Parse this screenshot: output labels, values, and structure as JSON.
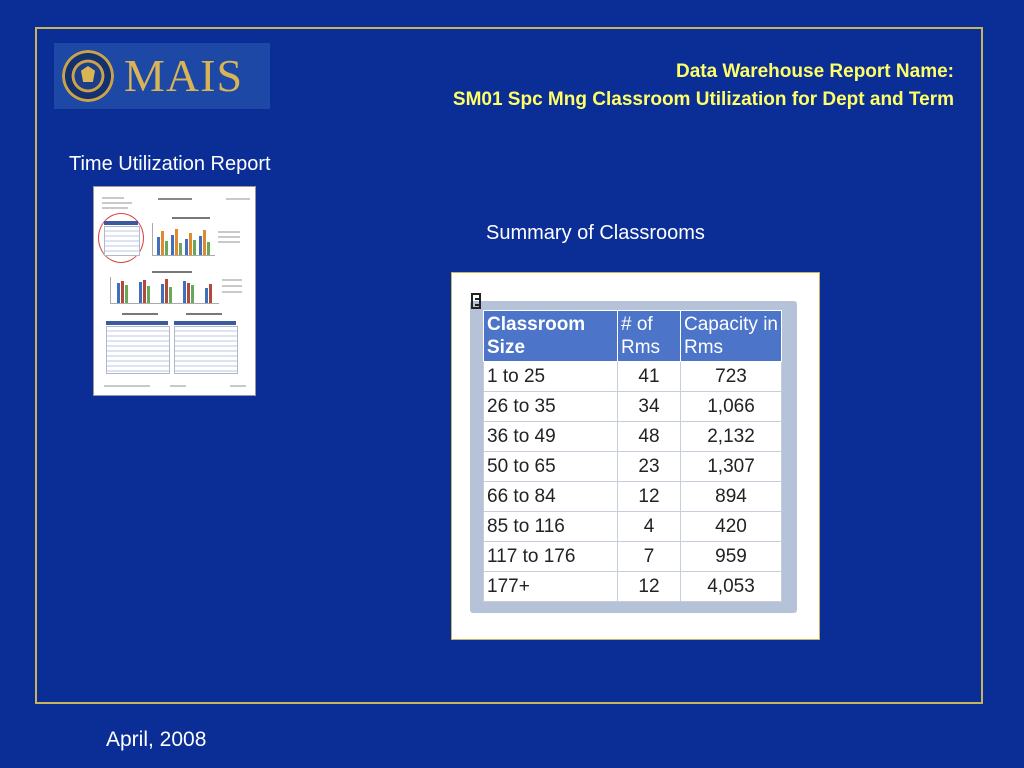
{
  "logo": {
    "text": "MAIS"
  },
  "header": {
    "line1": "Data Warehouse Report Name:",
    "line2": "SM01 Spc Mng Classroom Utilization for Dept and Term"
  },
  "left_caption": "Time Utilization Report",
  "right_caption": "Summary of Classrooms",
  "table": {
    "headers": [
      "Classroom Size",
      "# of Rms",
      "Capacity in Rms"
    ],
    "rows": [
      [
        "1 to 25",
        "41",
        "723"
      ],
      [
        "26 to 35",
        "34",
        "1,066"
      ],
      [
        "36 to 49",
        "48",
        "2,132"
      ],
      [
        "50 to 65",
        "23",
        "1,307"
      ],
      [
        "66 to 84",
        "12",
        "894"
      ],
      [
        "85 to 116",
        "4",
        "420"
      ],
      [
        "117 to 176",
        "7",
        "959"
      ],
      [
        "177+",
        "12",
        "4,053"
      ]
    ]
  },
  "footer": {
    "date": "April, 2008"
  },
  "colors": {
    "background": "#0b2e96",
    "title": "#ffff66",
    "table_header": "#4c74c8",
    "frame": "#c8b45a"
  }
}
